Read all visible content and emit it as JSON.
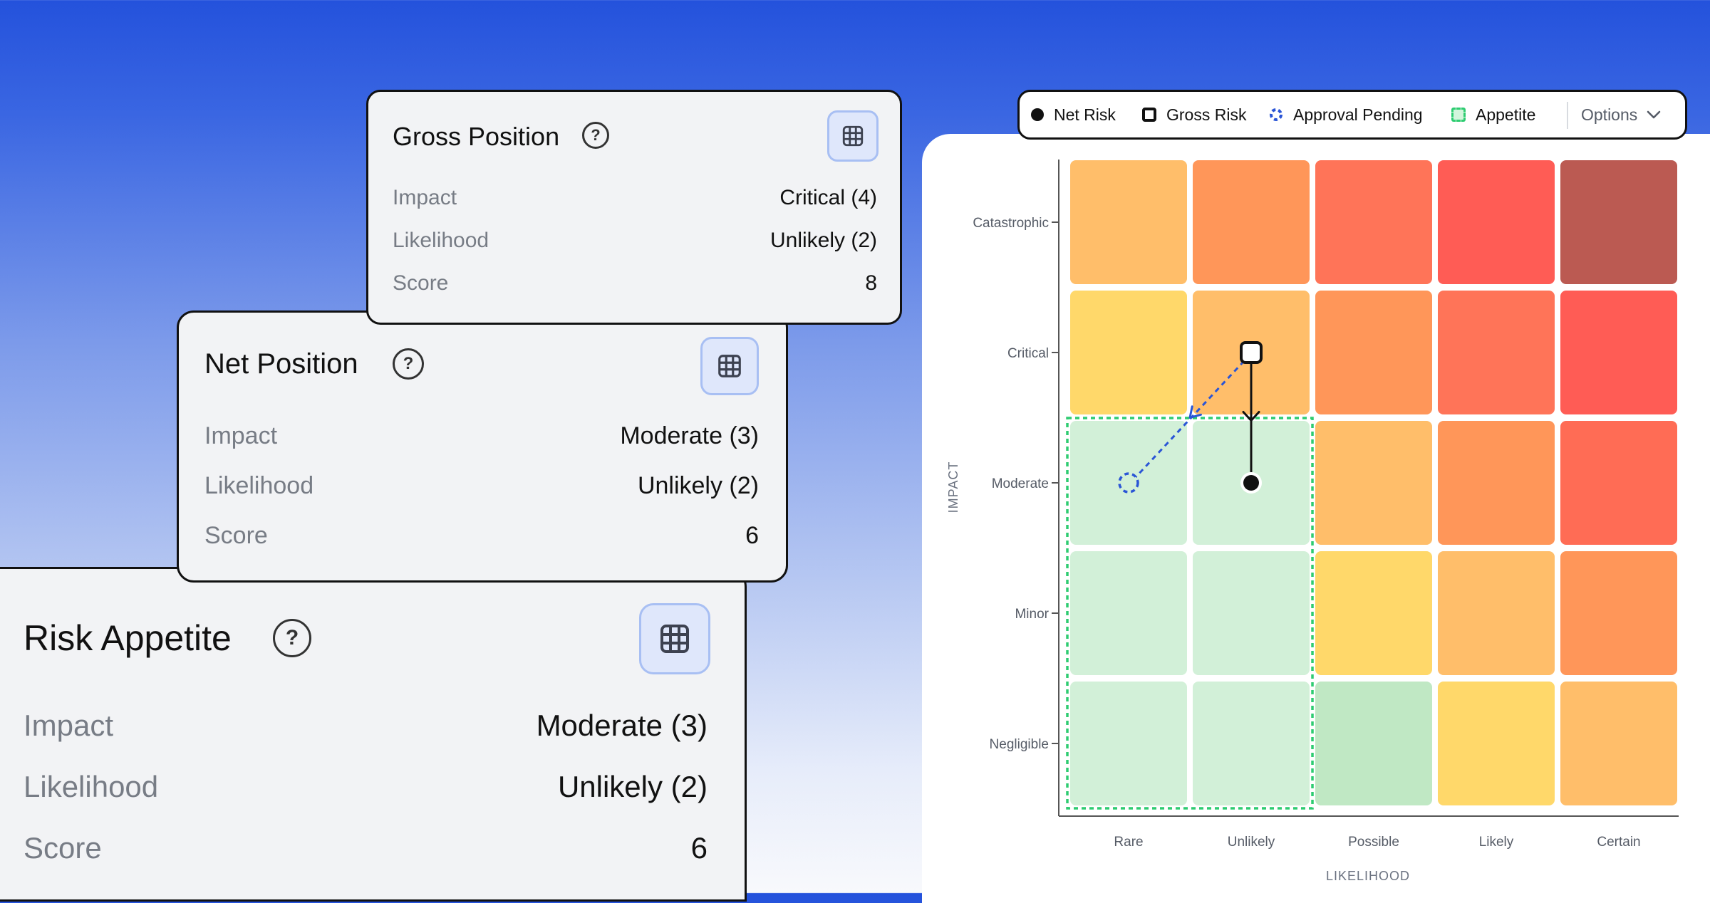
{
  "gross_position": {
    "title": "Gross Position",
    "help_icon": "?",
    "grid_icon": "grid-icon",
    "impact_label": "Impact",
    "impact_value": "Critical (4)",
    "likelihood_label": "Likelihood",
    "likelihood_value": "Unlikely (2)",
    "score_label": "Score",
    "score_value": "8"
  },
  "net_position": {
    "title": "Net Position",
    "help_icon": "?",
    "grid_icon": "grid-icon",
    "impact_label": "Impact",
    "impact_value": "Moderate (3)",
    "likelihood_label": "Likelihood",
    "likelihood_value": "Unlikely (2)",
    "score_label": "Score",
    "score_value": "6"
  },
  "risk_appetite": {
    "title": "Risk Appetite",
    "help_icon": "?",
    "grid_icon": "grid-icon",
    "impact_label": "Impact",
    "impact_value": "Moderate (3)",
    "likelihood_label": "Likelihood",
    "likelihood_value": "Unlikely (2)",
    "score_label": "Score",
    "score_value": "6"
  },
  "legend": {
    "net_risk": "Net Risk",
    "gross_risk": "Gross Risk",
    "approval_pending": "Approval Pending",
    "appetite": "Appetite",
    "options": "Options",
    "colors": {
      "net_risk": "#111111",
      "gross_risk": "#111111",
      "approval_pending": "#2a55d6",
      "appetite": "#2ecc71"
    }
  },
  "chart_data": {
    "type": "heatmap",
    "xlabel": "LIKELIHOOD",
    "ylabel": "IMPACT",
    "x_categories": [
      "Rare",
      "Unlikely",
      "Possible",
      "Likely",
      "Certain"
    ],
    "y_categories": [
      "Catastrophic",
      "Critical",
      "Moderate",
      "Minor",
      "Negligible"
    ],
    "cell_colors": [
      [
        "#ffbe6a",
        "#ff9659",
        "#ff7458",
        "#ff5c55",
        "#bb5a52"
      ],
      [
        "#ffd86a",
        "#ffbe6a",
        "#ff9659",
        "#ff7458",
        "#ff5c55"
      ],
      [
        "#d2f0d8",
        "#d2f0d8",
        "#ffbe6a",
        "#ff9659",
        "#ff6c55"
      ],
      [
        "#d2f0d8",
        "#d2f0d8",
        "#ffd86a",
        "#ffbe6a",
        "#ff9659"
      ],
      [
        "#d2f0d8",
        "#d2f0d8",
        "#c0e8c4",
        "#ffd86a",
        "#ffbe6a"
      ]
    ],
    "appetite_region": {
      "likelihood": [
        "Rare",
        "Unlikely"
      ],
      "impact": [
        "Negligible",
        "Minor",
        "Moderate"
      ]
    },
    "points": [
      {
        "series": "Gross Risk",
        "likelihood": "Unlikely",
        "impact": "Critical"
      },
      {
        "series": "Net Risk",
        "likelihood": "Unlikely",
        "impact": "Moderate"
      },
      {
        "series": "Approval Pending",
        "likelihood": "Rare",
        "impact": "Moderate"
      }
    ],
    "arrows": [
      {
        "from_series": "Gross Risk",
        "to_series": "Net Risk",
        "style": "solid"
      },
      {
        "from_series": "Gross Risk",
        "to_series": "Approval Pending",
        "style": "dashed"
      }
    ],
    "grid": false
  }
}
